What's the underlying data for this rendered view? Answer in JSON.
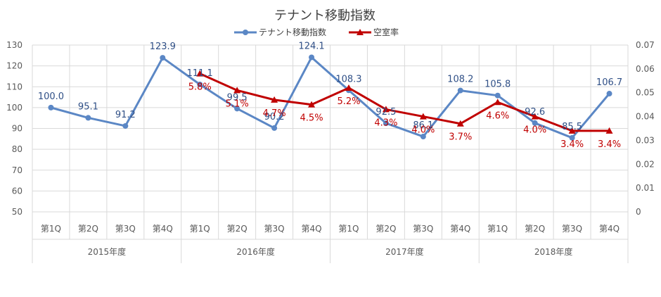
{
  "chart_data": {
    "type": "line",
    "title": "テナント移動指数",
    "categories": [
      "第1Q",
      "第2Q",
      "第3Q",
      "第4Q",
      "第1Q",
      "第2Q",
      "第3Q",
      "第4Q",
      "第1Q",
      "第2Q",
      "第3Q",
      "第4Q",
      "第1Q",
      "第2Q",
      "第3Q",
      "第4Q"
    ],
    "groups": [
      {
        "label": "2015年度",
        "span": 4
      },
      {
        "label": "2016年度",
        "span": 4
      },
      {
        "label": "2017年度",
        "span": 4
      },
      {
        "label": "2018年度",
        "span": 4
      }
    ],
    "y_left": {
      "ticks": [
        "130",
        "120",
        "110",
        "100",
        "90",
        "80",
        "70",
        "60",
        "50"
      ],
      "ylim": [
        50,
        130
      ]
    },
    "y_right": {
      "ticks": [
        "0.07",
        "0.06",
        "0.05",
        "0.04",
        "0.03",
        "0.02",
        "0.01",
        "0"
      ],
      "ylim": [
        0,
        0.07
      ]
    },
    "grid": true,
    "legend_position": "top",
    "series": [
      {
        "name": "テナント移動指数",
        "axis": "left",
        "color": "#5b87c5",
        "marker": "circle",
        "values": [
          100.0,
          95.1,
          91.2,
          123.9,
          111.1,
          99.5,
          90.2,
          124.1,
          108.3,
          92.5,
          86.1,
          108.2,
          105.8,
          92.6,
          85.5,
          106.7
        ],
        "labels": [
          "100.0",
          "95.1",
          "91.2",
          "123.9",
          "111.1",
          "99.5",
          "90.2",
          "124.1",
          "108.3",
          "92.5",
          "86.1",
          "108.2",
          "105.8",
          "92.6",
          "85.5",
          "106.7"
        ]
      },
      {
        "name": "空室率",
        "axis": "right",
        "color": "#c00000",
        "marker": "triangle",
        "values": [
          null,
          null,
          null,
          null,
          0.058,
          0.051,
          0.047,
          0.045,
          0.052,
          0.043,
          0.04,
          0.037,
          0.046,
          0.04,
          0.034,
          0.034
        ],
        "labels": [
          "",
          "",
          "",
          "",
          "5.8%",
          "5.1%",
          "4.7%",
          "4.5%",
          "5.2%",
          "4.3%",
          "4.0%",
          "3.7%",
          "4.6%",
          "4.0%",
          "3.4%",
          "3.4%"
        ]
      }
    ]
  }
}
